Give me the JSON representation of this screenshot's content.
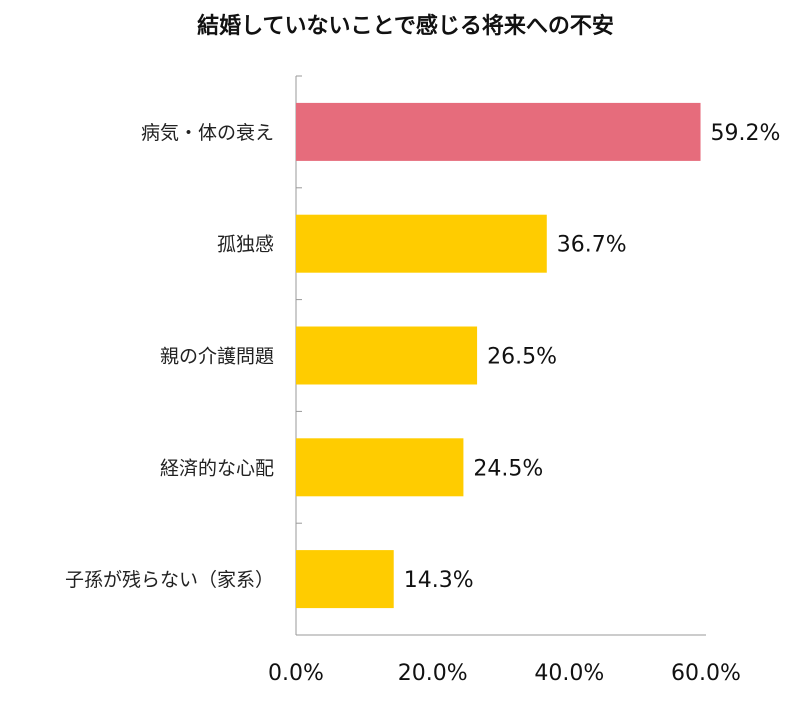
{
  "chart_data": {
    "type": "bar",
    "orientation": "horizontal",
    "title": "結婚していないことで感じる将来への不安",
    "categories": [
      "病気・体の衰え",
      "孤独感",
      "親の介護問題",
      "経済的な心配",
      "子孫が残らない（家系）"
    ],
    "values": [
      59.2,
      36.7,
      26.5,
      24.5,
      14.3
    ],
    "data_labels": [
      "59.2%",
      "36.7%",
      "26.5%",
      "24.5%",
      "14.3%"
    ],
    "xlim": [
      0,
      60
    ],
    "xticks": [
      0,
      20,
      40,
      60
    ],
    "xtick_labels": [
      "0.0%",
      "20.0%",
      "40.0%",
      "60.0%"
    ],
    "grid": false,
    "colors": {
      "highlight": "#E66C7C",
      "default": "#FFCC00",
      "axis": "#999999"
    },
    "highlight_index": 0
  }
}
